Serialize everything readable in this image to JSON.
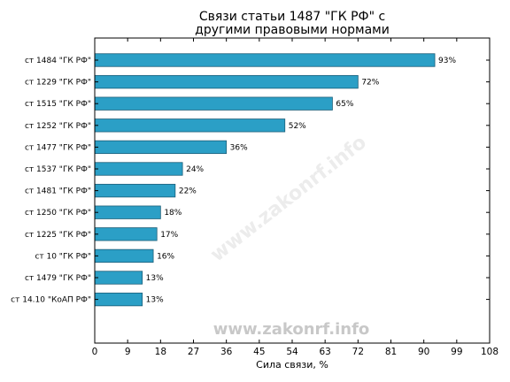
{
  "chart_data": {
    "type": "bar",
    "orientation": "horizontal",
    "title_lines": [
      "Связи статьи 1487 \"ГК РФ\" с",
      "другими правовыми нормами"
    ],
    "xlabel": "Сила связи, %",
    "ylabel": "",
    "xlim": [
      0,
      108
    ],
    "xticks": [
      0,
      9,
      18,
      27,
      36,
      45,
      54,
      63,
      72,
      81,
      90,
      99,
      108
    ],
    "grid": false,
    "bar_color": "#2b9fc6",
    "bar_edge_color": "#1c5e78",
    "categories": [
      "ст 1484 \"ГК РФ\"",
      "ст 1229 \"ГК РФ\"",
      "ст 1515 \"ГК РФ\"",
      "ст 1252 \"ГК РФ\"",
      "ст 1477 \"ГК РФ\"",
      "ст 1537 \"ГК РФ\"",
      "ст 1481 \"ГК РФ\"",
      "ст 1250 \"ГК РФ\"",
      "ст 1225 \"ГК РФ\"",
      "ст 10 \"ГК РФ\"",
      "ст 1479 \"ГК РФ\"",
      "ст 14.10 \"КоАП РФ\""
    ],
    "values": [
      93,
      72,
      65,
      52,
      36,
      24,
      22,
      18,
      17,
      16,
      13,
      13
    ],
    "value_labels": [
      "93%",
      "72%",
      "65%",
      "52%",
      "36%",
      "24%",
      "22%",
      "18%",
      "17%",
      "16%",
      "13%",
      "13%"
    ]
  },
  "watermark": "www.zakonrf.info"
}
